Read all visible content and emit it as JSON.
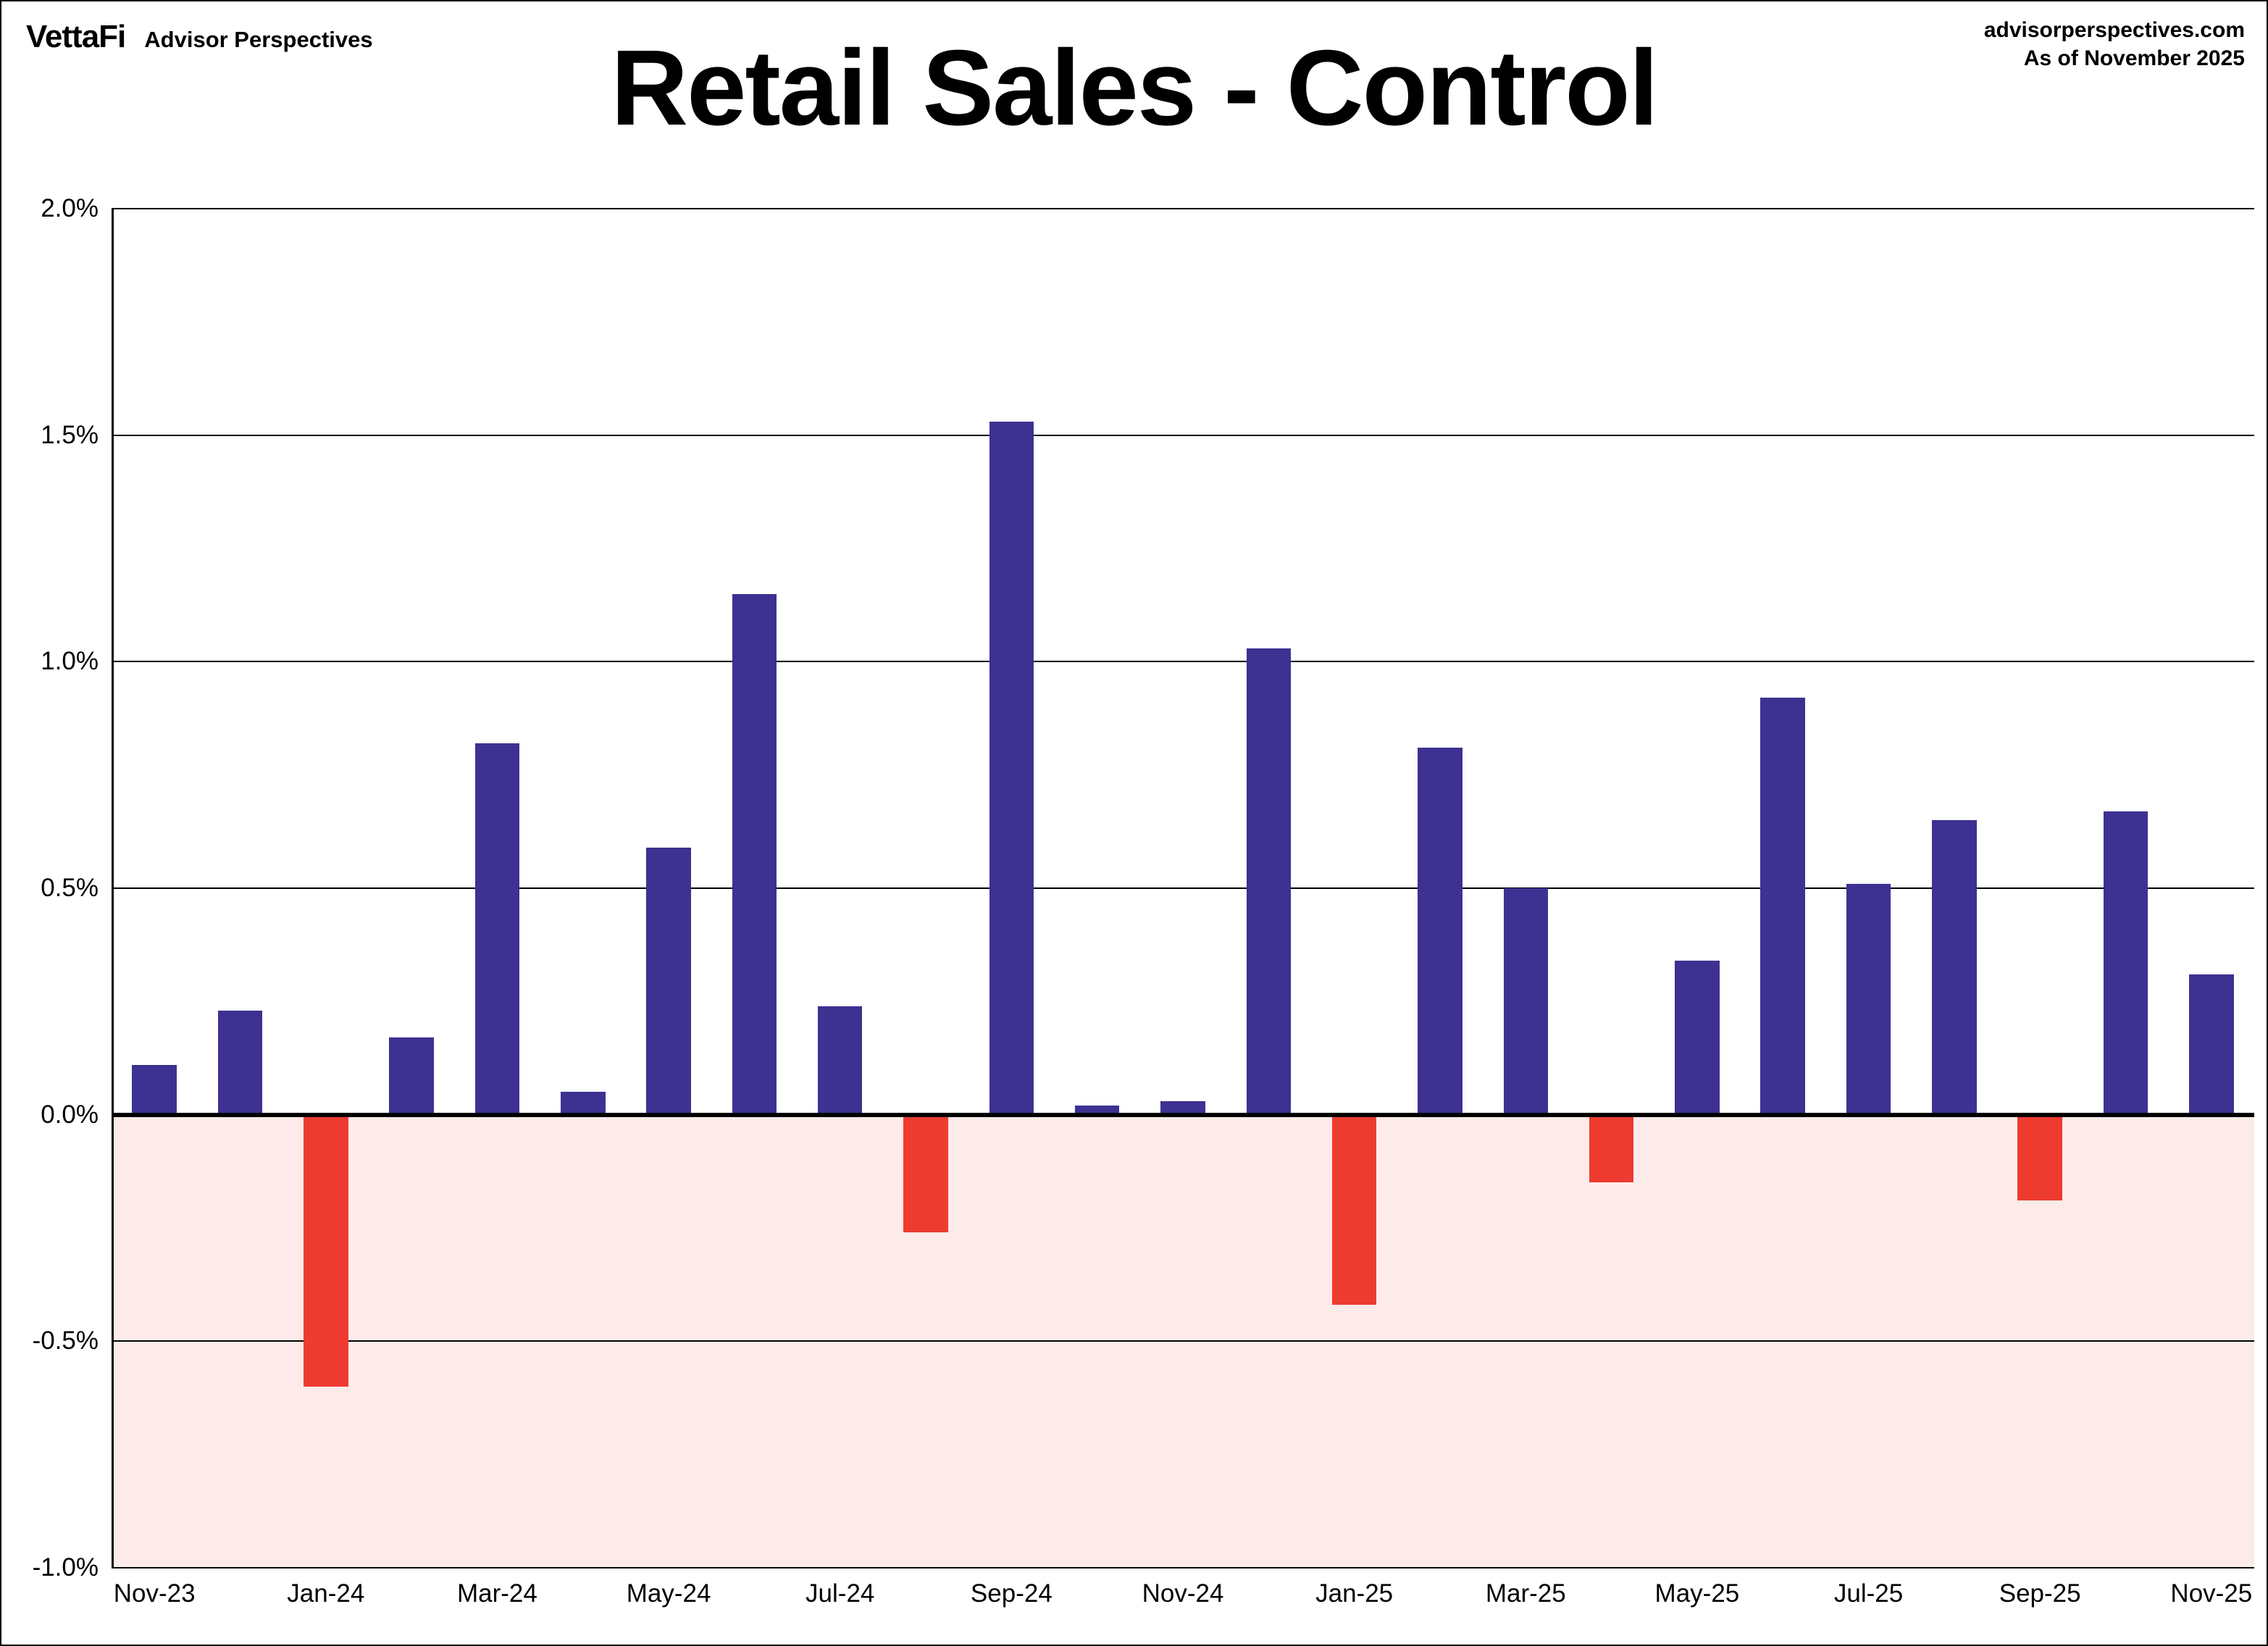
{
  "header": {
    "logo": "VettaFi",
    "logo_sub": "Advisor Perspectives",
    "title": "Retail Sales - Control",
    "source_line1": "advisorperspectives.com",
    "source_line2": "As of November 2025"
  },
  "chart_data": {
    "type": "bar",
    "title": "Retail Sales - Control",
    "x": [
      "Nov-23",
      "Dec-23",
      "Jan-24",
      "Feb-24",
      "Mar-24",
      "Apr-24",
      "May-24",
      "Jun-24",
      "Jul-24",
      "Aug-24",
      "Sep-24",
      "Oct-24",
      "Nov-24",
      "Dec-24",
      "Jan-25",
      "Feb-25",
      "Mar-25",
      "Apr-25",
      "May-25",
      "Jun-25",
      "Jul-25",
      "Aug-25",
      "Sep-25",
      "Oct-25",
      "Nov-25"
    ],
    "values": [
      0.11,
      0.23,
      -0.6,
      0.17,
      0.82,
      0.05,
      0.59,
      1.15,
      0.24,
      -0.26,
      1.53,
      0.02,
      0.03,
      1.03,
      -0.42,
      0.81,
      0.5,
      -0.15,
      0.34,
      0.92,
      0.51,
      0.65,
      -0.19,
      0.67,
      0.31
    ],
    "units": "percent",
    "xlabel": "",
    "ylabel": "",
    "ylim": [
      -1.0,
      2.0
    ],
    "yticks": [
      2.0,
      1.5,
      1.0,
      0.5,
      0.0,
      -0.5,
      -1.0
    ],
    "ytick_labels": [
      "2.0%",
      "1.5%",
      "1.0%",
      "0.5%",
      "0.0%",
      "-0.5%",
      "-1.0%"
    ],
    "xtick_labels": [
      "Nov-23",
      "Jan-24",
      "Mar-24",
      "May-24",
      "Jul-24",
      "Sep-24",
      "Nov-24",
      "Jan-25",
      "Mar-25",
      "May-25",
      "Jul-25",
      "Sep-25",
      "Nov-25"
    ],
    "xtick_every": 2,
    "grid": true,
    "legend": "none",
    "colors": {
      "positive_bar": "#3d3192",
      "negative_bar": "#ee3b30",
      "negative_region_bg": "#fcebe9",
      "gridline": "#000000",
      "text": "#000000"
    }
  }
}
